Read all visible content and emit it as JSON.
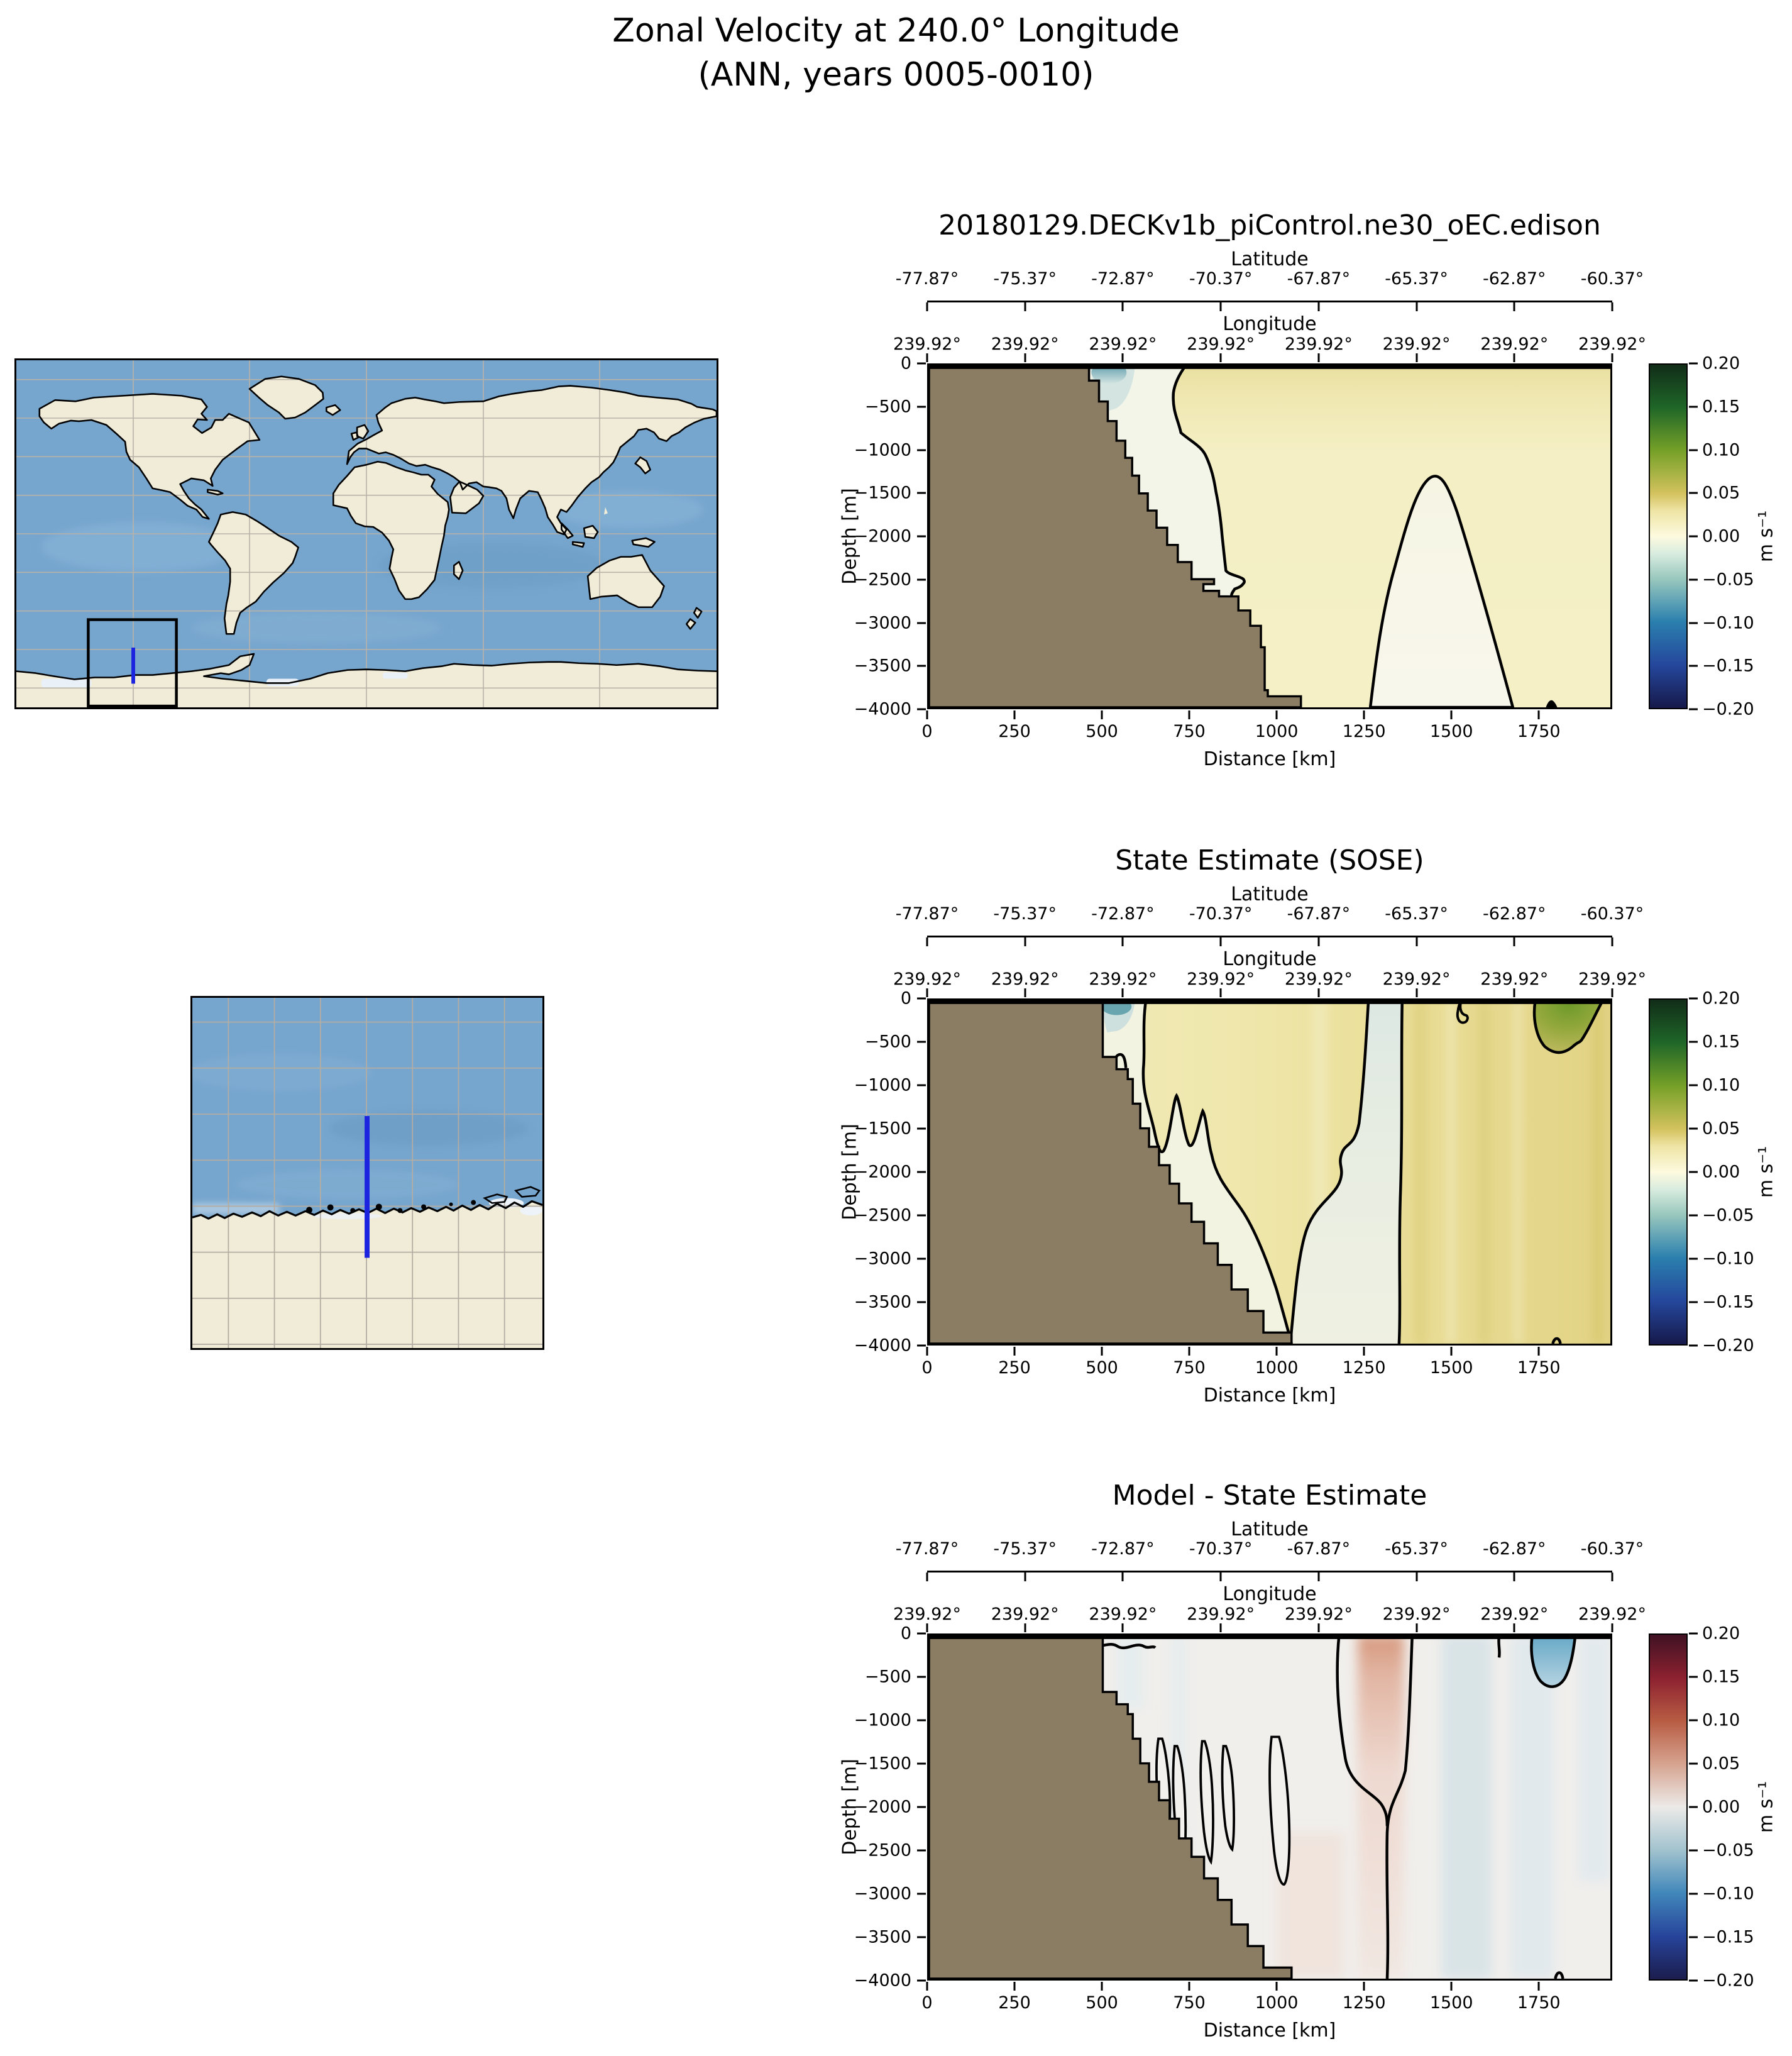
{
  "figure": {
    "title_line1": "Zonal Velocity at 240.0° Longitude",
    "title_line2": "(ANN, years 0005-0010)"
  },
  "colors": {
    "land_mask": "#8b7d64",
    "coastline": "#000000",
    "map_ocean": "#76a5cd",
    "map_land": "#f0ecd7",
    "map_grid": "#b9b2a8",
    "transect": "#1c24e0",
    "inset_box": "#000000"
  },
  "axes": {
    "latitude": {
      "label": "Latitude",
      "ticks": [
        {
          "value": -77.87,
          "label": "-77.87°"
        },
        {
          "value": -75.37,
          "label": "-75.37°"
        },
        {
          "value": -72.87,
          "label": "-72.87°"
        },
        {
          "value": -70.37,
          "label": "-70.37°"
        },
        {
          "value": -67.87,
          "label": "-67.87°"
        },
        {
          "value": -65.37,
          "label": "-65.37°"
        },
        {
          "value": -62.87,
          "label": "-62.87°"
        },
        {
          "value": -60.37,
          "label": "-60.37°"
        }
      ]
    },
    "longitude": {
      "label": "Longitude",
      "ticks": [
        {
          "label": "239.92°"
        },
        {
          "label": "239.92°"
        },
        {
          "label": "239.92°"
        },
        {
          "label": "239.92°"
        },
        {
          "label": "239.92°"
        },
        {
          "label": "239.92°"
        },
        {
          "label": "239.92°"
        },
        {
          "label": "239.92°"
        }
      ]
    },
    "depth": {
      "label": "Depth [m]",
      "ticks": [
        {
          "value": 0,
          "label": "0"
        },
        {
          "value": -500,
          "label": "−500"
        },
        {
          "value": -1000,
          "label": "−1000"
        },
        {
          "value": -1500,
          "label": "−1500"
        },
        {
          "value": -2000,
          "label": "−2000"
        },
        {
          "value": -2500,
          "label": "−2500"
        },
        {
          "value": -3000,
          "label": "−3000"
        },
        {
          "value": -3500,
          "label": "−3500"
        },
        {
          "value": -4000,
          "label": "−4000"
        }
      ]
    },
    "distance": {
      "label": "Distance [km]",
      "max_km": 1960,
      "ticks": [
        {
          "value": 0,
          "label": "0"
        },
        {
          "value": 250,
          "label": "250"
        },
        {
          "value": 500,
          "label": "500"
        },
        {
          "value": 750,
          "label": "750"
        },
        {
          "value": 1000,
          "label": "1000"
        },
        {
          "value": 1250,
          "label": "1250"
        },
        {
          "value": 1500,
          "label": "1500"
        },
        {
          "value": 1750,
          "label": "1750"
        }
      ]
    }
  },
  "panels": [
    {
      "title": "20180129.DECKv1b_piControl.ne30_oEC.edison",
      "colorbar": {
        "unit": "m s⁻¹",
        "ticks": [
          {
            "value": 0.2,
            "label": "0.20"
          },
          {
            "value": 0.15,
            "label": "0.15"
          },
          {
            "value": 0.1,
            "label": "0.10"
          },
          {
            "value": 0.05,
            "label": "0.05"
          },
          {
            "value": 0.0,
            "label": "0.00"
          },
          {
            "value": -0.05,
            "label": "−0.05"
          },
          {
            "value": -0.1,
            "label": "−0.10"
          },
          {
            "value": -0.15,
            "label": "−0.15"
          },
          {
            "value": -0.2,
            "label": "−0.20"
          }
        ],
        "stops": [
          {
            "value": -0.2,
            "color": "#16194a"
          },
          {
            "value": -0.15,
            "color": "#25479c"
          },
          {
            "value": -0.1,
            "color": "#2a7fae"
          },
          {
            "value": -0.05,
            "color": "#98c7bd"
          },
          {
            "value": -0.02,
            "color": "#d9ecdf"
          },
          {
            "value": 0.0,
            "color": "#fdfadf"
          },
          {
            "value": 0.03,
            "color": "#eee4a4"
          },
          {
            "value": 0.05,
            "color": "#d3c25e"
          },
          {
            "value": 0.1,
            "color": "#75a028"
          },
          {
            "value": 0.15,
            "color": "#1f6628"
          },
          {
            "value": 0.2,
            "color": "#112d18"
          }
        ]
      }
    },
    {
      "title": "State Estimate (SOSE)",
      "colorbar": {
        "unit": "m s⁻¹",
        "ticks": [
          {
            "value": 0.2,
            "label": "0.20"
          },
          {
            "value": 0.15,
            "label": "0.15"
          },
          {
            "value": 0.1,
            "label": "0.10"
          },
          {
            "value": 0.05,
            "label": "0.05"
          },
          {
            "value": 0.0,
            "label": "0.00"
          },
          {
            "value": -0.05,
            "label": "−0.05"
          },
          {
            "value": -0.1,
            "label": "−0.10"
          },
          {
            "value": -0.15,
            "label": "−0.15"
          },
          {
            "value": -0.2,
            "label": "−0.20"
          }
        ],
        "stops": [
          {
            "value": -0.2,
            "color": "#16194a"
          },
          {
            "value": -0.15,
            "color": "#25479c"
          },
          {
            "value": -0.1,
            "color": "#2a7fae"
          },
          {
            "value": -0.05,
            "color": "#98c7bd"
          },
          {
            "value": -0.02,
            "color": "#d9ecdf"
          },
          {
            "value": 0.0,
            "color": "#fdfadf"
          },
          {
            "value": 0.03,
            "color": "#eee4a4"
          },
          {
            "value": 0.05,
            "color": "#d3c25e"
          },
          {
            "value": 0.1,
            "color": "#75a028"
          },
          {
            "value": 0.15,
            "color": "#1f6628"
          },
          {
            "value": 0.2,
            "color": "#112d18"
          }
        ]
      }
    },
    {
      "title": "Model - State Estimate",
      "colorbar": {
        "unit": "m s⁻¹",
        "ticks": [
          {
            "value": 0.2,
            "label": "0.20"
          },
          {
            "value": 0.15,
            "label": "0.15"
          },
          {
            "value": 0.1,
            "label": "0.10"
          },
          {
            "value": 0.05,
            "label": "0.05"
          },
          {
            "value": 0.0,
            "label": "0.00"
          },
          {
            "value": -0.05,
            "label": "−0.05"
          },
          {
            "value": -0.1,
            "label": "−0.10"
          },
          {
            "value": -0.15,
            "label": "−0.15"
          },
          {
            "value": -0.2,
            "label": "−0.20"
          }
        ],
        "stops": [
          {
            "value": -0.2,
            "color": "#1b1d4d"
          },
          {
            "value": -0.15,
            "color": "#27449b"
          },
          {
            "value": -0.1,
            "color": "#4187ba"
          },
          {
            "value": -0.05,
            "color": "#a2c3ce"
          },
          {
            "value": 0.0,
            "color": "#eceae8"
          },
          {
            "value": 0.05,
            "color": "#d6a38f"
          },
          {
            "value": 0.1,
            "color": "#b85c43"
          },
          {
            "value": 0.15,
            "color": "#8c2130"
          },
          {
            "value": 0.2,
            "color": "#401223"
          }
        ]
      }
    }
  ],
  "maps": {
    "world": {
      "description": "Global locator map with black inset box and blue transect line near 240°E over the Antarctic margin",
      "grid_spacing": "20° latitude × 60° longitude"
    },
    "region": {
      "description": "Zoomed map of the Antarctic coastal region crossed by the 240°E transect (blue line)"
    }
  },
  "chart_data": [
    {
      "type": "filled_contour_section",
      "title": "20180129.DECKv1b_piControl.ne30_oEC.edison",
      "xlabel": "Distance [km]",
      "ylabel": "Depth [m]",
      "xlim": [
        0,
        1960
      ],
      "ylim": [
        -4000,
        0
      ],
      "latitude_ticks_deg": [
        -77.87,
        -75.37,
        -72.87,
        -70.37,
        -67.87,
        -65.37,
        -62.87,
        -60.37
      ],
      "longitude_ticks_deg": [
        239.92,
        239.92,
        239.92,
        239.92,
        239.92,
        239.92,
        239.92,
        239.92
      ],
      "value_units": "m s⁻¹",
      "value_range": [
        -0.2,
        0.2
      ],
      "colormap": "dark-blue → teal → cream-white → yellow-olive → dark-green (cmocean delta-like)",
      "zero_contour": "black",
      "bathymetry_distance_km_by_depth_m": [
        [
          0,
          460
        ],
        [
          200,
          490
        ],
        [
          450,
          515
        ],
        [
          700,
          540
        ],
        [
          900,
          565
        ],
        [
          1100,
          585
        ],
        [
          1300,
          605
        ],
        [
          1500,
          630
        ],
        [
          1700,
          655
        ],
        [
          1900,
          685
        ],
        [
          2100,
          715
        ],
        [
          2300,
          755
        ],
        [
          2500,
          820
        ],
        [
          2650,
          835
        ],
        [
          2700,
          890
        ],
        [
          2870,
          925
        ],
        [
          3050,
          955
        ],
        [
          3800,
          975
        ],
        [
          4000,
          1070
        ]
      ],
      "features": [
        "weakly negative (pale blue-white, ≈ −0.02 m/s) pocket along the continental slope 460–900 km above 2700 m depth",
        "small stronger negative patch (≈ −0.08 m/s, teal) at the surface near 500 km",
        "broad weak eastward flow ≈ +0.02 to +0.05 m/s over most of the section, strongest near the surface",
        "near-zero dome outlined by the zero contour centered near 1450 km, rising from the seafloor to ≈ 1300 m depth",
        "tiny zero-contour blip on the seafloor near 1790 km"
      ]
    },
    {
      "type": "filled_contour_section",
      "title": "State Estimate (SOSE)",
      "xlabel": "Distance [km]",
      "ylabel": "Depth [m]",
      "xlim": [
        0,
        1960
      ],
      "ylim": [
        -4000,
        0
      ],
      "latitude_ticks_deg": [
        -77.87,
        -75.37,
        -72.87,
        -70.37,
        -67.87,
        -65.37,
        -62.87,
        -60.37
      ],
      "longitude_ticks_deg": [
        239.92,
        239.92,
        239.92,
        239.92,
        239.92,
        239.92,
        239.92,
        239.92
      ],
      "value_units": "m s⁻¹",
      "value_range": [
        -0.2,
        0.2
      ],
      "colormap": "dark-blue → teal → cream-white → yellow-olive → dark-green (cmocean delta-like)",
      "zero_contour": "black",
      "bathymetry_distance_km_by_depth_m": [
        [
          0,
          500
        ],
        [
          660,
          540
        ],
        [
          800,
          570
        ],
        [
          920,
          585
        ],
        [
          1200,
          610
        ],
        [
          1500,
          660
        ],
        [
          1700,
          690
        ],
        [
          1900,
          720
        ],
        [
          2100,
          760
        ],
        [
          2400,
          830
        ],
        [
          2800,
          870
        ],
        [
          3100,
          920
        ],
        [
          3400,
          960
        ],
        [
          3900,
          1040
        ]
      ],
      "features": [
        "banded (vertically striped) eastward flow +0.02 to +0.08 m/s over the right two-thirds of the section",
        "strong surface-intensified jet ≈ +0.10 m/s (green) between 1720 and 1900 km, reaching ≈ 650 m depth, enclosed by the +0.05 contour",
        "near-zero/weakly-negative pale column between ≈ 1260 and 1360 km extending from surface to seafloor",
        "complex meandering zero contour with narrow alternating fingers between 600 and 1150 km from ≈ 400 m to 2800 m depth",
        "weakly negative pale water over the shelf between the coast (500 km) and ≈ 620 km, with a small teal surface patch",
        "small closed zero-contour loop at the surface near 1540 km"
      ]
    },
    {
      "type": "filled_contour_section",
      "title": "Model - State Estimate",
      "xlabel": "Distance [km]",
      "ylabel": "Depth [m]",
      "xlim": [
        0,
        1960
      ],
      "ylim": [
        -4000,
        0
      ],
      "latitude_ticks_deg": [
        -77.87,
        -75.37,
        -72.87,
        -70.37,
        -67.87,
        -65.37,
        -62.87,
        -60.37
      ],
      "longitude_ticks_deg": [
        239.92,
        239.92,
        239.92,
        239.92,
        239.92,
        239.92,
        239.92,
        239.92
      ],
      "value_units": "m s⁻¹",
      "value_range": [
        -0.2,
        0.2
      ],
      "colormap": "dark-navy → blue → white → salmon → dark-maroon (cmocean balance-like diverging)",
      "zero_contour": "black",
      "bathymetry_distance_km_by_depth_m": [
        [
          0,
          500
        ],
        [
          660,
          540
        ],
        [
          800,
          570
        ],
        [
          920,
          585
        ],
        [
          1200,
          610
        ],
        [
          1500,
          660
        ],
        [
          1700,
          690
        ],
        [
          1900,
          720
        ],
        [
          2100,
          760
        ],
        [
          2400,
          830
        ],
        [
          2800,
          870
        ],
        [
          3100,
          920
        ],
        [
          3400,
          960
        ],
        [
          3900,
          1040
        ]
      ],
      "features": [
        "differences mostly small (|Δ| < 0.05 m/s), section dominated by near-white shading",
        "positive (red, ≈ +0.05 m/s at surface) full-depth band centered near 1300 km, fading with depth",
        "negative (blue, ≈ −0.07 m/s) surface-intensified patch between 1740 and 1860 km reaching ≈ 650 m depth",
        "weak negative (pale blue) vertical bands through the right half of the section (≈ 1450–1800 km)",
        "zero contour descending from the surface near 1180 km and 1390 km, merging to a single near-vertical line near 1330 km down to the seafloor",
        "narrow closed zero-contour fingers between 650 and 1050 km from ≈ 1200 m to 2800 m depth",
        "small zero-contour wiggles at the surface between 460 and 650 km and a tiny loop on the seafloor near 1810 km"
      ]
    }
  ]
}
